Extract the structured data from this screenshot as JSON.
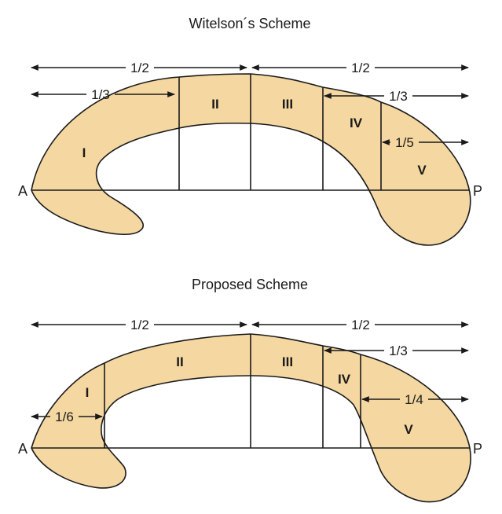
{
  "figure": {
    "colors": {
      "fill": "#f4d7a1",
      "stroke": "#1a1a1a",
      "background": "#ffffff"
    },
    "schemes": [
      {
        "key": "witelson",
        "title": "Witelson´s Scheme",
        "anterior_label": "A",
        "posterior_label": "P",
        "regions": [
          "I",
          "II",
          "III",
          "IV",
          "V"
        ],
        "fractions": {
          "anterior_half": "1/2",
          "posterior_half": "1/2",
          "anterior_third": "1/3",
          "posterior_third": "1/3",
          "posterior_fifth": "1/5"
        }
      },
      {
        "key": "proposed",
        "title": "Proposed Scheme",
        "anterior_label": "A",
        "posterior_label": "P",
        "regions": [
          "I",
          "II",
          "III",
          "IV",
          "V"
        ],
        "fractions": {
          "anterior_half": "1/2",
          "posterior_half": "1/2",
          "posterior_third": "1/3",
          "anterior_sixth": "1/6",
          "posterior_quarter": "1/4"
        }
      }
    ]
  }
}
